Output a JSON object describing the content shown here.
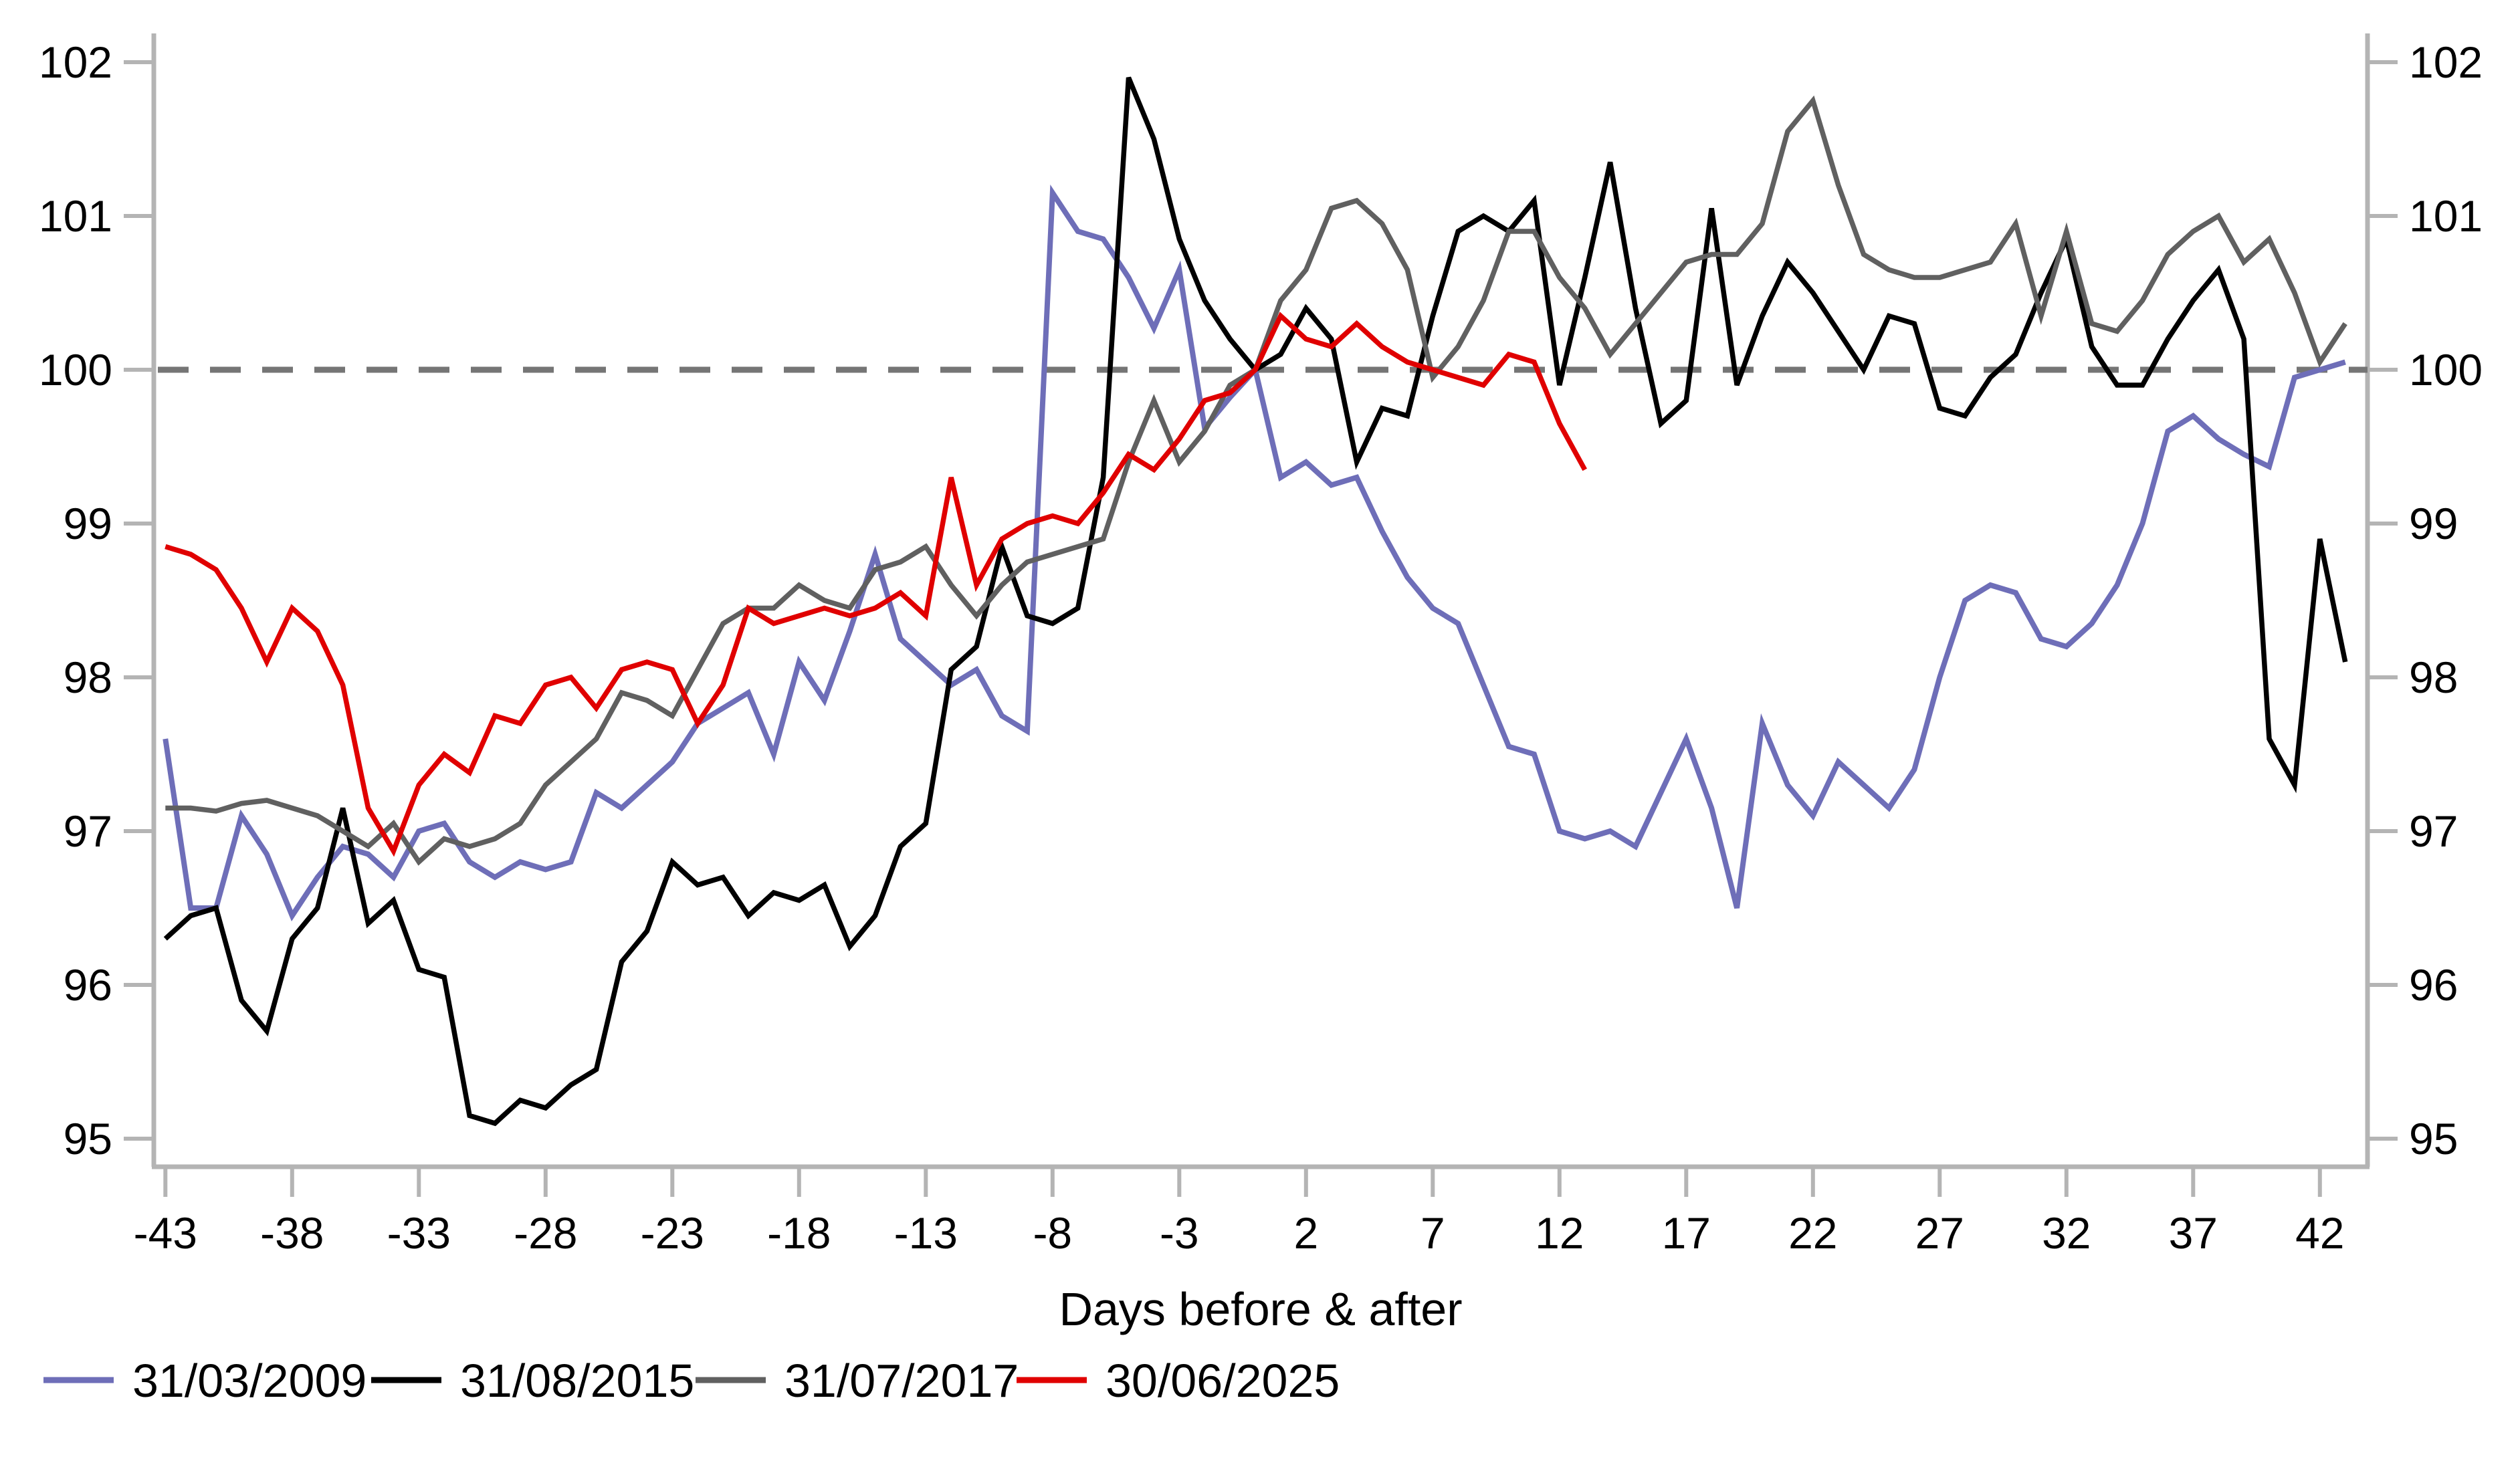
{
  "chart_data": {
    "type": "line",
    "title": "",
    "xlabel": "Days before & after",
    "ylabel": "",
    "legend_position": "bottom-left",
    "grid": false,
    "reference_line_y": 100,
    "ylim": [
      94.8,
      102.2
    ],
    "xlim": [
      -43.5,
      44
    ],
    "y_ticks": [
      95,
      96,
      97,
      98,
      99,
      100,
      101,
      102
    ],
    "x_ticks": [
      -43,
      -38,
      -33,
      -28,
      -23,
      -18,
      -13,
      -8,
      -3,
      2,
      7,
      12,
      17,
      22,
      27,
      32,
      37,
      42
    ],
    "axis_color": "#b4b4b4",
    "reference_line_color": "#757575",
    "series": [
      {
        "name": "31/03/2009",
        "color": "#6e6eb8",
        "start_day": -43,
        "values": [
          97.6,
          96.5,
          96.5,
          97.1,
          96.85,
          96.45,
          96.7,
          96.9,
          96.85,
          96.7,
          97.0,
          97.05,
          96.8,
          96.7,
          96.8,
          96.75,
          96.8,
          97.25,
          97.15,
          97.3,
          97.45,
          97.7,
          97.8,
          97.9,
          97.5,
          98.1,
          97.85,
          98.3,
          98.8,
          98.25,
          98.1,
          97.95,
          98.05,
          97.75,
          97.65,
          101.15,
          100.9,
          100.85,
          100.6,
          100.27,
          100.65,
          99.62,
          99.82,
          100.0,
          99.3,
          99.4,
          99.25,
          99.3,
          98.95,
          98.65,
          98.45,
          98.35,
          97.95,
          97.55,
          97.5,
          97.0,
          96.95,
          97.0,
          96.9,
          97.25,
          97.6,
          97.15,
          96.5,
          97.7,
          97.3,
          97.1,
          97.45,
          97.3,
          97.15,
          97.4,
          98.0,
          98.5,
          98.6,
          98.55,
          98.25,
          98.2,
          98.35,
          98.6,
          99.0,
          99.6,
          99.7,
          99.55,
          99.45,
          99.37,
          99.95,
          100.0,
          100.05
        ]
      },
      {
        "name": "31/08/2015",
        "color": "#000000",
        "start_day": -43,
        "values": [
          96.3,
          96.45,
          96.5,
          95.9,
          95.7,
          96.3,
          96.5,
          97.15,
          96.4,
          96.55,
          96.1,
          96.05,
          95.15,
          95.1,
          95.25,
          95.2,
          95.35,
          95.45,
          96.15,
          96.35,
          96.8,
          96.65,
          96.7,
          96.45,
          96.6,
          96.55,
          96.65,
          96.25,
          96.45,
          96.9,
          97.05,
          98.05,
          98.2,
          98.85,
          98.4,
          98.35,
          98.45,
          99.3,
          101.9,
          101.5,
          100.85,
          100.45,
          100.2,
          100.0,
          100.1,
          100.4,
          100.2,
          99.4,
          99.75,
          99.7,
          100.35,
          100.9,
          101.0,
          100.9,
          101.1,
          99.9,
          100.6,
          101.35,
          100.4,
          99.65,
          99.8,
          101.05,
          99.9,
          100.35,
          100.7,
          100.5,
          100.25,
          100.0,
          100.35,
          100.3,
          99.75,
          99.7,
          99.95,
          100.1,
          100.5,
          100.85,
          100.15,
          99.9,
          99.9,
          100.2,
          100.45,
          100.65,
          100.2,
          97.6,
          97.3,
          98.9,
          98.1
        ]
      },
      {
        "name": "31/07/2017",
        "color": "#606060",
        "start_day": -43,
        "values": [
          97.15,
          97.15,
          97.13,
          97.18,
          97.2,
          97.15,
          97.1,
          97.0,
          96.9,
          97.05,
          96.8,
          96.95,
          96.9,
          96.95,
          97.05,
          97.3,
          97.45,
          97.6,
          97.9,
          97.85,
          97.75,
          98.05,
          98.35,
          98.45,
          98.45,
          98.6,
          98.5,
          98.45,
          98.7,
          98.75,
          98.85,
          98.6,
          98.4,
          98.6,
          98.75,
          98.8,
          98.85,
          98.9,
          99.4,
          99.8,
          99.4,
          99.6,
          99.9,
          100.0,
          100.45,
          100.65,
          101.05,
          101.1,
          100.95,
          100.65,
          99.95,
          100.15,
          100.45,
          100.9,
          100.9,
          100.6,
          100.4,
          100.1,
          100.3,
          100.5,
          100.7,
          100.75,
          100.75,
          100.95,
          101.55,
          101.75,
          101.2,
          100.75,
          100.65,
          100.6,
          100.6,
          100.65,
          100.7,
          100.95,
          100.35,
          100.9,
          100.3,
          100.25,
          100.45,
          100.75,
          100.9,
          101.0,
          100.7,
          100.85,
          100.5,
          100.05,
          100.3
        ]
      },
      {
        "name": "30/06/2025",
        "color": "#e00000",
        "start_day": -43,
        "values": [
          98.85,
          98.8,
          98.7,
          98.45,
          98.1,
          98.45,
          98.3,
          97.95,
          97.15,
          96.87,
          97.3,
          97.5,
          97.38,
          97.75,
          97.7,
          97.95,
          98.0,
          97.8,
          98.05,
          98.1,
          98.05,
          97.7,
          97.95,
          98.45,
          98.35,
          98.4,
          98.45,
          98.4,
          98.45,
          98.55,
          98.4,
          99.3,
          98.6,
          98.9,
          99.0,
          99.05,
          99.0,
          99.2,
          99.45,
          99.35,
          99.55,
          99.8,
          99.85,
          100.0,
          100.35,
          100.2,
          100.15,
          100.3,
          100.15,
          100.05,
          100.0,
          99.95,
          99.9,
          100.1,
          100.05,
          99.65,
          99.35
        ]
      }
    ]
  },
  "legend": {
    "items": [
      {
        "label": "31/03/2009"
      },
      {
        "label": "31/08/2015"
      },
      {
        "label": "31/07/2017"
      },
      {
        "label": "30/06/2025"
      }
    ]
  },
  "axis": {
    "x_title": "Days before & after"
  }
}
